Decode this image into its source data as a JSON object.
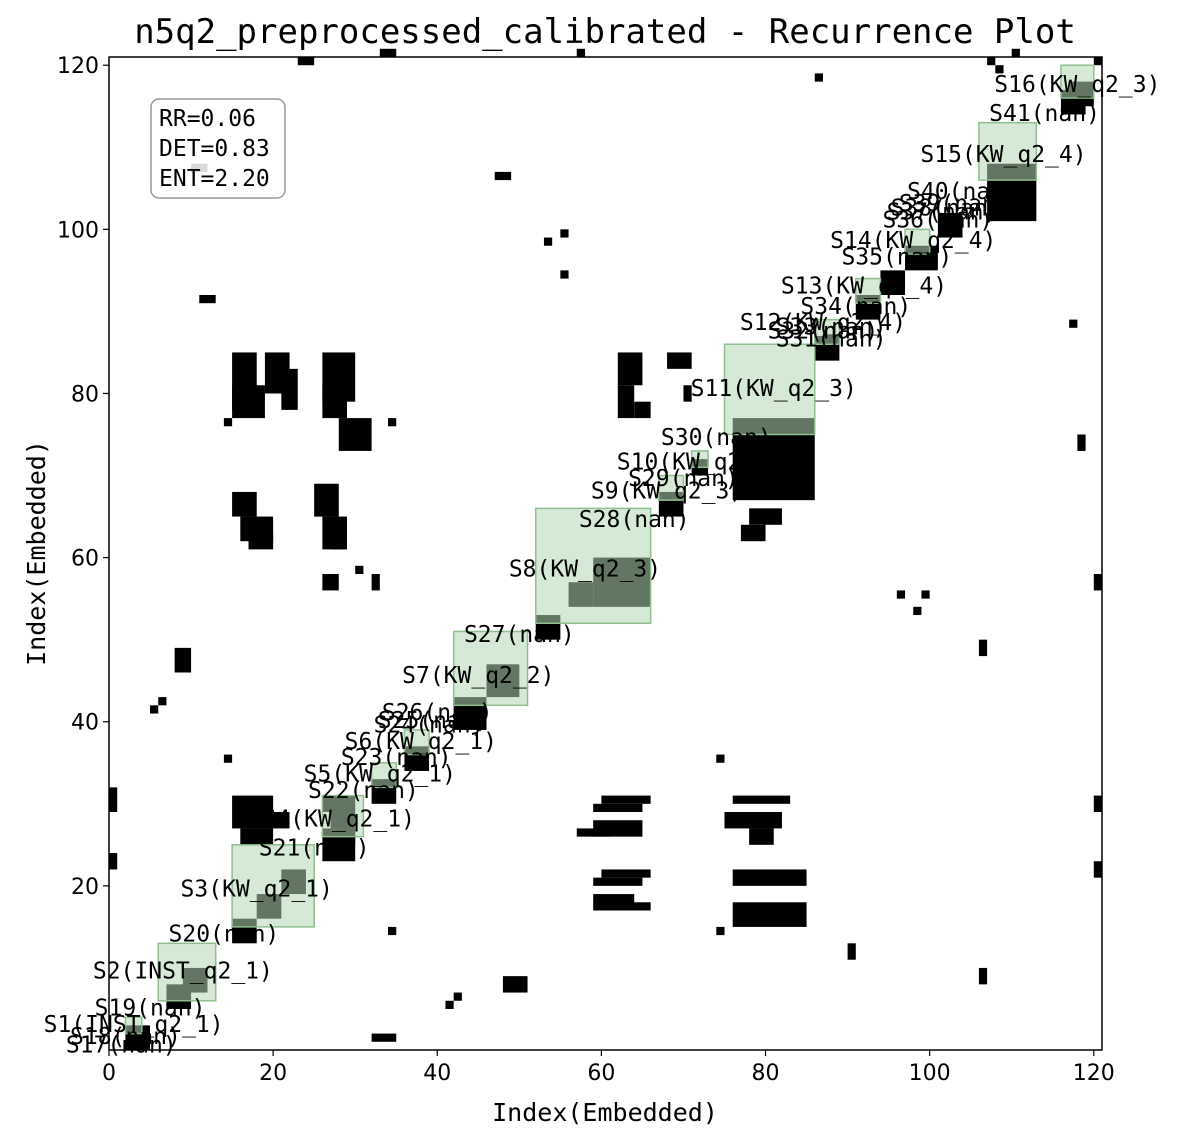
{
  "chart_data": {
    "type": "heatmap",
    "title": "n5q2_preprocessed_calibrated - Recurrence Plot",
    "xlabel": "Index(Embedded)",
    "ylabel": "Index(Embedded)",
    "xlim": [
      0,
      121
    ],
    "ylim": [
      0,
      121
    ],
    "xticks": [
      0,
      20,
      40,
      60,
      80,
      100,
      120
    ],
    "yticks": [
      20,
      40,
      60,
      80,
      100,
      120
    ],
    "stats": [
      "RR=0.06",
      "DET=0.83",
      "ENT=2.20"
    ],
    "colors": {
      "recurrence": "#000000",
      "segment_fill": "#b5d5b5",
      "segment_edge": "#8fbf8f",
      "overlap": "#2a3a2a"
    },
    "segments": [
      {
        "label": "S1(INST_q2_1)",
        "start": 2,
        "end": 4
      },
      {
        "label": "S2(INST_q2_1)",
        "start": 6,
        "end": 13
      },
      {
        "label": "S3(KW_q2_1)",
        "start": 15,
        "end": 25
      },
      {
        "label": "S4(KW_q2_1)",
        "start": 26,
        "end": 31
      },
      {
        "label": "S5(KW_q2_1)",
        "start": 32,
        "end": 35
      },
      {
        "label": "S6(KW_q2_1)",
        "start": 36,
        "end": 39
      },
      {
        "label": "S7(KW_q2_2)",
        "start": 42,
        "end": 51
      },
      {
        "label": "S8(KW_q2_3)",
        "start": 52,
        "end": 66
      },
      {
        "label": "S9(KW_q2_3)",
        "start": 67,
        "end": 70
      },
      {
        "label": "S10(KW_q2_3)",
        "start": 71,
        "end": 73
      },
      {
        "label": "S11(KW_q2_3)",
        "start": 75,
        "end": 86
      },
      {
        "label": "S12(KW_q2_4)",
        "start": 86,
        "end": 89
      },
      {
        "label": "S13(KW_q2_4)",
        "start": 91,
        "end": 94
      },
      {
        "label": "S14(KW_q2_4)",
        "start": 97,
        "end": 100
      },
      {
        "label": "S15(KW_q2_4)",
        "start": 106,
        "end": 113
      },
      {
        "label": "S16(KW_q2_3)",
        "start": 116,
        "end": 120
      }
    ],
    "labels": [
      {
        "text": "S1(INST_q2_1)",
        "x": 3,
        "y": 3
      },
      {
        "text": "S2(INST_q2_1)",
        "x": 9,
        "y": 9.5
      },
      {
        "text": "S3(KW_q2_1)",
        "x": 18,
        "y": 19.5
      },
      {
        "text": "S4(KW_q2_1)",
        "x": 28,
        "y": 28
      },
      {
        "text": "S5(KW_q2_1)",
        "x": 33,
        "y": 33.5
      },
      {
        "text": "S6(KW_q2_1)",
        "x": 38,
        "y": 37.5
      },
      {
        "text": "S7(KW_q2_2)",
        "x": 45,
        "y": 45.5
      },
      {
        "text": "S8(KW_q2_3)",
        "x": 58,
        "y": 58.5
      },
      {
        "text": "S9(KW_q2_3)",
        "x": 68,
        "y": 68
      },
      {
        "text": "S10(KW_q2_3)",
        "x": 72,
        "y": 71.5
      },
      {
        "text": "S11(KW_q2_3)",
        "x": 81,
        "y": 80.5
      },
      {
        "text": "S12(KW_q2_4)",
        "x": 87,
        "y": 88.5
      },
      {
        "text": "S13(KW_q2_4)",
        "x": 92,
        "y": 93
      },
      {
        "text": "S14(KW_q2_4)",
        "x": 98,
        "y": 98.5
      },
      {
        "text": "S15(KW_q2_4)",
        "x": 109,
        "y": 109
      },
      {
        "text": "S16(KW_q2_3)",
        "x": 118,
        "y": 117.5
      },
      {
        "text": "S17(nan)",
        "x": 1.5,
        "y": 0.5
      },
      {
        "text": "S18(nan)",
        "x": 2,
        "y": 1.5
      },
      {
        "text": "S19(nan)",
        "x": 5,
        "y": 5
      },
      {
        "text": "S20(nan)",
        "x": 14,
        "y": 14
      },
      {
        "text": "S21(nan)",
        "x": 25,
        "y": 24.5
      },
      {
        "text": "S22(nan)",
        "x": 31,
        "y": 31.5
      },
      {
        "text": "S23(nan)",
        "x": 35,
        "y": 35.5
      },
      {
        "text": "S24(nan)",
        "x": 39,
        "y": 39.5
      },
      {
        "text": "S25(nan)",
        "x": 39.5,
        "y": 40
      },
      {
        "text": "S26(nan)",
        "x": 40,
        "y": 41
      },
      {
        "text": "S27(nan)",
        "x": 50,
        "y": 50.5
      },
      {
        "text": "S28(nan)",
        "x": 64,
        "y": 64.5
      },
      {
        "text": "S29(nan)",
        "x": 70,
        "y": 69.5
      },
      {
        "text": "S30(nan)",
        "x": 74,
        "y": 74.5
      },
      {
        "text": "S31(nan)",
        "x": 88,
        "y": 86.5
      },
      {
        "text": "S32(nan)",
        "x": 87,
        "y": 87.5
      },
      {
        "text": "S33(nan)",
        "x": 88,
        "y": 88
      },
      {
        "text": "S34(nan)",
        "x": 91,
        "y": 90.5
      },
      {
        "text": "S35(nan)",
        "x": 96,
        "y": 96.5
      },
      {
        "text": "S36(nan)",
        "x": 101,
        "y": 101
      },
      {
        "text": "S37(nan)",
        "x": 101.5,
        "y": 102
      },
      {
        "text": "S38(nan)",
        "x": 102,
        "y": 102.5
      },
      {
        "text": "S39(nan)",
        "x": 103,
        "y": 103
      },
      {
        "text": "S40(nan)",
        "x": 104,
        "y": 104.5
      },
      {
        "text": "S41(nan)",
        "x": 114,
        "y": 114
      }
    ],
    "recurrence_blocks": [
      [
        15,
        30,
        5,
        2
      ],
      [
        15,
        28,
        7,
        2
      ],
      [
        16,
        26,
        4,
        2
      ],
      [
        26,
        30,
        4,
        2
      ],
      [
        27,
        28,
        3,
        2
      ],
      [
        27,
        26,
        3,
        2
      ],
      [
        60,
        30,
        6,
        1
      ],
      [
        59,
        29,
        6,
        1
      ],
      [
        59,
        27,
        6,
        2
      ],
      [
        57,
        26,
        4,
        1
      ],
      [
        60,
        21,
        6,
        1
      ],
      [
        59,
        20,
        6,
        1
      ],
      [
        59,
        18,
        5,
        2
      ],
      [
        60,
        17,
        6,
        1
      ],
      [
        76,
        30,
        7,
        1
      ],
      [
        75,
        28,
        7,
        2
      ],
      [
        78,
        26,
        3,
        2
      ],
      [
        76,
        21,
        9,
        2
      ],
      [
        76,
        17,
        9,
        3
      ],
      [
        15,
        84,
        3,
        7
      ],
      [
        15,
        80,
        4,
        4
      ],
      [
        19,
        84,
        3,
        5
      ],
      [
        21,
        82,
        2,
        5
      ],
      [
        26,
        84,
        4,
        6
      ],
      [
        26,
        80,
        3,
        4
      ],
      [
        28,
        76,
        4,
        4
      ],
      [
        15,
        67,
        3,
        3
      ],
      [
        16,
        64,
        4,
        3
      ],
      [
        17,
        62,
        3,
        2
      ],
      [
        25,
        68,
        3,
        4
      ],
      [
        26,
        64,
        3,
        4
      ],
      [
        27,
        62,
        2,
        2
      ],
      [
        62,
        84,
        3,
        4
      ],
      [
        62,
        80,
        2,
        4
      ],
      [
        64,
        78,
        2,
        2
      ],
      [
        68,
        84,
        3,
        2
      ],
      [
        70,
        80,
        1,
        2
      ],
      [
        76,
        70,
        4,
        2
      ],
      [
        78,
        65,
        4,
        2
      ],
      [
        77,
        63,
        3,
        2
      ],
      [
        2,
        2,
        3,
        3
      ],
      [
        7,
        7,
        3,
        3
      ],
      [
        9,
        9,
        3,
        3
      ],
      [
        15,
        15,
        3,
        3
      ],
      [
        18,
        18,
        3,
        3
      ],
      [
        21,
        21,
        3,
        3
      ],
      [
        26,
        26,
        4,
        4
      ],
      [
        32,
        32,
        3,
        3
      ],
      [
        36,
        36,
        3,
        3
      ],
      [
        42,
        42,
        4,
        4
      ],
      [
        46,
        46,
        4,
        4
      ],
      [
        52,
        52,
        3,
        3
      ],
      [
        56,
        56,
        3,
        3
      ],
      [
        59,
        59,
        7,
        6
      ],
      [
        67,
        67,
        3,
        3
      ],
      [
        71,
        71,
        2,
        2
      ],
      [
        76,
        76,
        10,
        10
      ],
      [
        86,
        86,
        3,
        3
      ],
      [
        91,
        91,
        3,
        3
      ],
      [
        94,
        94,
        3,
        3
      ],
      [
        97,
        97,
        4,
        3
      ],
      [
        101,
        101,
        3,
        3
      ],
      [
        107,
        107,
        6,
        7
      ],
      [
        116,
        116,
        3,
        3
      ],
      [
        0,
        31,
        1,
        3
      ],
      [
        0,
        23,
        1,
        2
      ],
      [
        120,
        30,
        1,
        2
      ],
      [
        120,
        22,
        1,
        2
      ],
      [
        120,
        57,
        1,
        2
      ],
      [
        8,
        48,
        2,
        3
      ],
      [
        5,
        41,
        1,
        1
      ],
      [
        6,
        42,
        1,
        1
      ],
      [
        10,
        107,
        2,
        1
      ],
      [
        11,
        91,
        2,
        1
      ],
      [
        23,
        120,
        2,
        1
      ],
      [
        33,
        121,
        2,
        1
      ],
      [
        57,
        121,
        1,
        1
      ],
      [
        47,
        106,
        2,
        1
      ],
      [
        53,
        98,
        1,
        1
      ],
      [
        55,
        99,
        1,
        1
      ],
      [
        55,
        94,
        1,
        1
      ],
      [
        32,
        1,
        3,
        1
      ],
      [
        48,
        8,
        3,
        2
      ],
      [
        41,
        5,
        1,
        1
      ],
      [
        42,
        6,
        1,
        1
      ],
      [
        14,
        35,
        1,
        1
      ],
      [
        14,
        76,
        1,
        1
      ],
      [
        34,
        76,
        1,
        1
      ],
      [
        34,
        14,
        1,
        1
      ],
      [
        74,
        35,
        1,
        1
      ],
      [
        74,
        14,
        1,
        1
      ],
      [
        107,
        120,
        1,
        1
      ],
      [
        108,
        119,
        1,
        1
      ],
      [
        117,
        117,
        3,
        3
      ],
      [
        117,
        88,
        1,
        1
      ],
      [
        118,
        74,
        1,
        2
      ],
      [
        96,
        55,
        1,
        1
      ],
      [
        99,
        55,
        1,
        1
      ],
      [
        98,
        53,
        1,
        1
      ],
      [
        106,
        49,
        1,
        2
      ],
      [
        106,
        9,
        1,
        2
      ],
      [
        90,
        12,
        1,
        2
      ],
      [
        86,
        118,
        1,
        1
      ],
      [
        110,
        121,
        1,
        1
      ],
      [
        120,
        120,
        1,
        1
      ],
      [
        26,
        57,
        2,
        2
      ],
      [
        30,
        58,
        1,
        1
      ],
      [
        32,
        57,
        1,
        2
      ]
    ]
  }
}
